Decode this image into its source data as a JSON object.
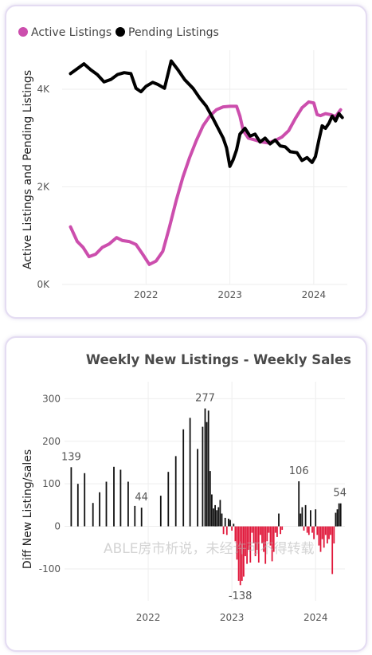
{
  "chart_data": [
    {
      "type": "line",
      "title": "",
      "ylabel": "Active Listings and Pending Listings",
      "xlabel": "",
      "legend_position": "top-left",
      "ylim": [
        0,
        4800
      ],
      "xlim": [
        2021.0,
        2024.4
      ],
      "y_ticks": [
        {
          "value": 0,
          "label": "0K"
        },
        {
          "value": 2000,
          "label": "2K"
        },
        {
          "value": 4000,
          "label": "4K"
        }
      ],
      "x_ticks": [
        {
          "value": 2022,
          "label": "2022"
        },
        {
          "value": 2023,
          "label": "2023"
        },
        {
          "value": 2024,
          "label": "2024"
        }
      ],
      "grid": true,
      "series": [
        {
          "name": "Active Listings",
          "color": "#cc4ead",
          "points": [
            [
              2021.1,
              1180
            ],
            [
              2021.18,
              880
            ],
            [
              2021.25,
              760
            ],
            [
              2021.32,
              570
            ],
            [
              2021.4,
              620
            ],
            [
              2021.48,
              760
            ],
            [
              2021.56,
              830
            ],
            [
              2021.65,
              960
            ],
            [
              2021.72,
              900
            ],
            [
              2021.8,
              880
            ],
            [
              2021.88,
              820
            ],
            [
              2021.96,
              620
            ],
            [
              2022.04,
              410
            ],
            [
              2022.12,
              480
            ],
            [
              2022.2,
              680
            ],
            [
              2022.28,
              1180
            ],
            [
              2022.36,
              1720
            ],
            [
              2022.44,
              2200
            ],
            [
              2022.52,
              2600
            ],
            [
              2022.6,
              2950
            ],
            [
              2022.68,
              3250
            ],
            [
              2022.76,
              3450
            ],
            [
              2022.84,
              3580
            ],
            [
              2022.92,
              3640
            ],
            [
              2023.0,
              3650
            ],
            [
              2023.08,
              3650
            ],
            [
              2023.12,
              3450
            ],
            [
              2023.16,
              3150
            ],
            [
              2023.22,
              3000
            ],
            [
              2023.3,
              2960
            ],
            [
              2023.38,
              2920
            ],
            [
              2023.46,
              2900
            ],
            [
              2023.54,
              2950
            ],
            [
              2023.62,
              3020
            ],
            [
              2023.7,
              3150
            ],
            [
              2023.78,
              3400
            ],
            [
              2023.86,
              3620
            ],
            [
              2023.94,
              3740
            ],
            [
              2024.0,
              3720
            ],
            [
              2024.04,
              3480
            ],
            [
              2024.08,
              3460
            ],
            [
              2024.14,
              3500
            ],
            [
              2024.2,
              3480
            ],
            [
              2024.26,
              3440
            ],
            [
              2024.32,
              3580
            ]
          ]
        },
        {
          "name": "Pending Listings",
          "color": "#000000",
          "points": [
            [
              2021.1,
              4320
            ],
            [
              2021.18,
              4420
            ],
            [
              2021.26,
              4520
            ],
            [
              2021.34,
              4400
            ],
            [
              2021.42,
              4300
            ],
            [
              2021.5,
              4150
            ],
            [
              2021.58,
              4200
            ],
            [
              2021.66,
              4300
            ],
            [
              2021.74,
              4340
            ],
            [
              2021.82,
              4320
            ],
            [
              2021.88,
              4020
            ],
            [
              2021.94,
              3950
            ],
            [
              2022.0,
              4060
            ],
            [
              2022.08,
              4140
            ],
            [
              2022.14,
              4100
            ],
            [
              2022.22,
              4020
            ],
            [
              2022.3,
              4580
            ],
            [
              2022.38,
              4400
            ],
            [
              2022.46,
              4200
            ],
            [
              2022.56,
              4020
            ],
            [
              2022.64,
              3820
            ],
            [
              2022.72,
              3650
            ],
            [
              2022.8,
              3400
            ],
            [
              2022.86,
              3200
            ],
            [
              2022.92,
              3000
            ],
            [
              2022.96,
              2800
            ],
            [
              2023.0,
              2420
            ],
            [
              2023.04,
              2560
            ],
            [
              2023.08,
              2760
            ],
            [
              2023.12,
              3080
            ],
            [
              2023.18,
              3200
            ],
            [
              2023.24,
              3040
            ],
            [
              2023.3,
              3080
            ],
            [
              2023.36,
              2920
            ],
            [
              2023.42,
              3000
            ],
            [
              2023.48,
              2880
            ],
            [
              2023.54,
              2960
            ],
            [
              2023.6,
              2840
            ],
            [
              2023.66,
              2820
            ],
            [
              2023.72,
              2720
            ],
            [
              2023.8,
              2700
            ],
            [
              2023.86,
              2540
            ],
            [
              2023.92,
              2600
            ],
            [
              2023.98,
              2500
            ],
            [
              2024.02,
              2620
            ],
            [
              2024.06,
              2950
            ],
            [
              2024.1,
              3250
            ],
            [
              2024.14,
              3200
            ],
            [
              2024.18,
              3300
            ],
            [
              2024.22,
              3450
            ],
            [
              2024.26,
              3350
            ],
            [
              2024.3,
              3500
            ],
            [
              2024.34,
              3420
            ]
          ]
        }
      ]
    },
    {
      "type": "bar",
      "title": "Weekly New Listings - Weekly Sales",
      "ylabel": "Diff New Listing/sales",
      "xlabel": "",
      "ylim": [
        -175,
        340
      ],
      "xlim": [
        2021.0,
        2024.35
      ],
      "y_ticks": [
        {
          "value": 300,
          "label": "300"
        },
        {
          "value": 200,
          "label": "200"
        },
        {
          "value": 100,
          "label": "100"
        },
        {
          "value": 0,
          "label": "0"
        },
        {
          "value": -100,
          "label": "-100"
        }
      ],
      "x_ticks": [
        {
          "value": 2022,
          "label": "2022"
        },
        {
          "value": 2023,
          "label": "2023"
        },
        {
          "value": 2024,
          "label": "2024"
        }
      ],
      "grid": true,
      "positive_color": "#111111",
      "negative_color": "#e0173a",
      "bars": [
        [
          2021.08,
          139
        ],
        [
          2021.16,
          100
        ],
        [
          2021.24,
          125
        ],
        [
          2021.34,
          55
        ],
        [
          2021.42,
          80
        ],
        [
          2021.5,
          105
        ],
        [
          2021.59,
          140
        ],
        [
          2021.67,
          133
        ],
        [
          2021.76,
          105
        ],
        [
          2021.84,
          48
        ],
        [
          2021.92,
          44
        ],
        [
          2022.15,
          72
        ],
        [
          2022.24,
          128
        ],
        [
          2022.33,
          165
        ],
        [
          2022.42,
          228
        ],
        [
          2022.5,
          255
        ],
        [
          2022.59,
          182
        ],
        [
          2022.65,
          234
        ],
        [
          2022.68,
          277
        ],
        [
          2022.7,
          245
        ],
        [
          2022.72,
          272
        ],
        [
          2022.74,
          130
        ],
        [
          2022.76,
          75
        ],
        [
          2022.78,
          42
        ],
        [
          2022.8,
          50
        ],
        [
          2022.82,
          38
        ],
        [
          2022.84,
          45
        ],
        [
          2022.86,
          62
        ],
        [
          2022.88,
          30
        ],
        [
          2022.9,
          -18
        ],
        [
          2022.92,
          20
        ],
        [
          2022.94,
          -20
        ],
        [
          2022.96,
          18
        ],
        [
          2022.98,
          15
        ],
        [
          2023.0,
          -10
        ],
        [
          2023.02,
          6
        ],
        [
          2023.04,
          -35
        ],
        [
          2023.06,
          -78
        ],
        [
          2023.08,
          -128
        ],
        [
          2023.1,
          -138
        ],
        [
          2023.12,
          -128
        ],
        [
          2023.14,
          -118
        ],
        [
          2023.16,
          -70
        ],
        [
          2023.18,
          -88
        ],
        [
          2023.2,
          -55
        ],
        [
          2023.22,
          -85
        ],
        [
          2023.24,
          -15
        ],
        [
          2023.26,
          -40
        ],
        [
          2023.28,
          -70
        ],
        [
          2023.3,
          -55
        ],
        [
          2023.32,
          -85
        ],
        [
          2023.34,
          -20
        ],
        [
          2023.36,
          -40
        ],
        [
          2023.38,
          -60
        ],
        [
          2023.4,
          -88
        ],
        [
          2023.42,
          -35
        ],
        [
          2023.44,
          -15
        ],
        [
          2023.46,
          -45
        ],
        [
          2023.48,
          -82
        ],
        [
          2023.5,
          -60
        ],
        [
          2023.52,
          -15
        ],
        [
          2023.54,
          -25
        ],
        [
          2023.56,
          30
        ],
        [
          2023.58,
          -18
        ],
        [
          2023.6,
          -8
        ],
        [
          2023.8,
          106
        ],
        [
          2023.82,
          30
        ],
        [
          2023.84,
          45
        ],
        [
          2023.86,
          -10
        ],
        [
          2023.88,
          50
        ],
        [
          2023.9,
          -15
        ],
        [
          2023.92,
          -20
        ],
        [
          2023.94,
          38
        ],
        [
          2023.96,
          -15
        ],
        [
          2023.98,
          -30
        ],
        [
          2024.0,
          40
        ],
        [
          2024.02,
          -20
        ],
        [
          2024.04,
          -45
        ],
        [
          2024.06,
          -60
        ],
        [
          2024.08,
          -30
        ],
        [
          2024.1,
          -50
        ],
        [
          2024.12,
          -20
        ],
        [
          2024.14,
          -40
        ],
        [
          2024.16,
          -30
        ],
        [
          2024.18,
          -20
        ],
        [
          2024.2,
          -112
        ],
        [
          2024.22,
          -40
        ],
        [
          2024.24,
          32
        ],
        [
          2024.26,
          40
        ],
        [
          2024.28,
          54
        ],
        [
          2024.3,
          54
        ]
      ],
      "data_labels": [
        {
          "x": 2021.08,
          "value": 139,
          "label": "139"
        },
        {
          "x": 2021.92,
          "value": 44,
          "label": "44"
        },
        {
          "x": 2022.68,
          "value": 277,
          "label": "277"
        },
        {
          "x": 2023.1,
          "value": -138,
          "label": "-138"
        },
        {
          "x": 2023.8,
          "value": 106,
          "label": "106"
        },
        {
          "x": 2024.29,
          "value": 54,
          "label": "54"
        }
      ]
    }
  ],
  "watermark": "ABLE房市析说，未经许可不得转载"
}
